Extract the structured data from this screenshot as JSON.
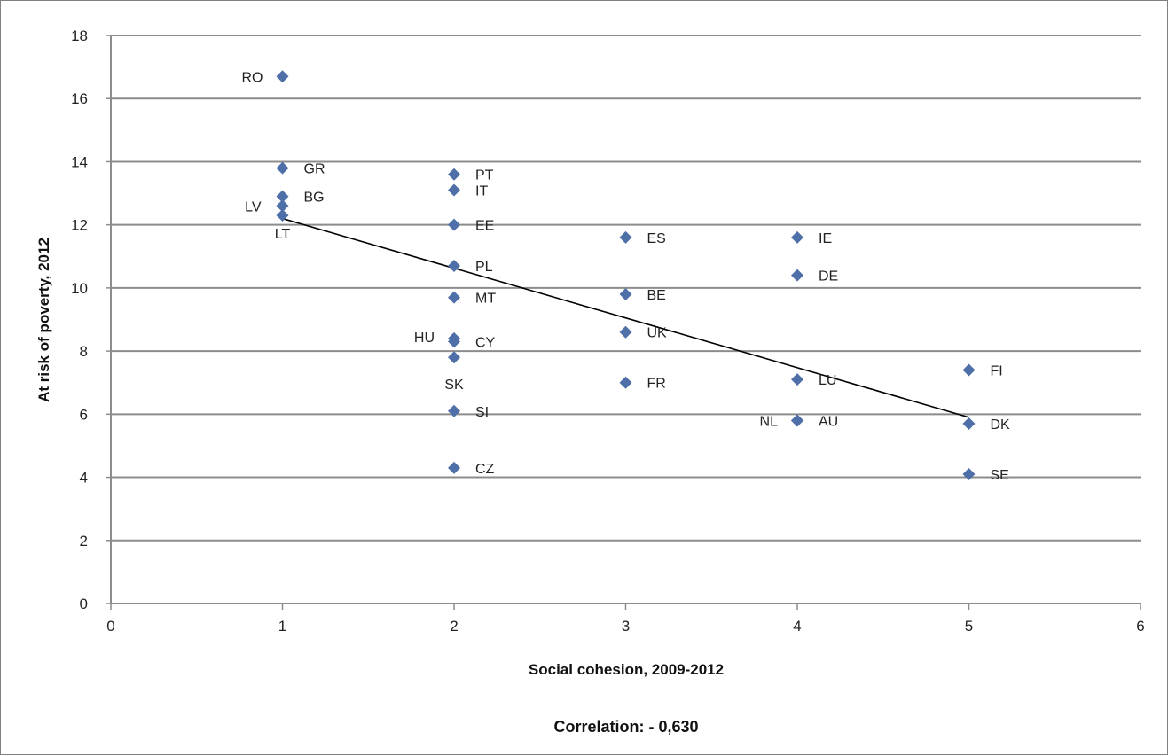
{
  "chart_data": {
    "type": "scatter",
    "xlabel": "Social cohesion, 2009-2012",
    "ylabel": "At risk of poverty, 2012",
    "xlim": [
      0,
      6
    ],
    "ylim": [
      0,
      18
    ],
    "x_ticks": [
      "0",
      "1",
      "2",
      "3",
      "4",
      "5",
      "6"
    ],
    "y_ticks": [
      "0",
      "2",
      "4",
      "6",
      "8",
      "10",
      "12",
      "14",
      "16",
      "18"
    ],
    "grid": "horizontal",
    "marker_color": "#4f6fa8",
    "points": [
      {
        "label": "RO",
        "x": 1,
        "y": 16.7
      },
      {
        "label": "GR",
        "x": 1,
        "y": 13.8
      },
      {
        "label": "BG",
        "x": 1,
        "y": 12.9
      },
      {
        "label": "LV",
        "x": 1,
        "y": 12.6
      },
      {
        "label": "LT",
        "x": 1,
        "y": 12.3
      },
      {
        "label": "PT",
        "x": 2,
        "y": 13.6
      },
      {
        "label": "IT",
        "x": 2,
        "y": 13.1
      },
      {
        "label": "EE",
        "x": 2,
        "y": 12.0
      },
      {
        "label": "PL",
        "x": 2,
        "y": 10.7
      },
      {
        "label": "MT",
        "x": 2,
        "y": 9.7
      },
      {
        "label": "HU",
        "x": 2,
        "y": 8.4
      },
      {
        "label": "CY",
        "x": 2,
        "y": 8.3
      },
      {
        "label": "SK",
        "x": 2,
        "y": 7.8
      },
      {
        "label": "SI",
        "x": 2,
        "y": 6.1
      },
      {
        "label": "CZ",
        "x": 2,
        "y": 4.3
      },
      {
        "label": "ES",
        "x": 3,
        "y": 11.6
      },
      {
        "label": "BE",
        "x": 3,
        "y": 9.8
      },
      {
        "label": "UK",
        "x": 3,
        "y": 8.6
      },
      {
        "label": "FR",
        "x": 3,
        "y": 7.0
      },
      {
        "label": "IE",
        "x": 4,
        "y": 11.6
      },
      {
        "label": "DE",
        "x": 4,
        "y": 10.4
      },
      {
        "label": "LU",
        "x": 4,
        "y": 7.1
      },
      {
        "label": "NL",
        "x": 4,
        "y": 5.8
      },
      {
        "label": "AU",
        "x": 4,
        "y": 5.8
      },
      {
        "label": "FI",
        "x": 5,
        "y": 7.4
      },
      {
        "label": "DK",
        "x": 5,
        "y": 5.7
      },
      {
        "label": "SE",
        "x": 5,
        "y": 4.1
      }
    ],
    "trendline": {
      "x": [
        1,
        5
      ],
      "y": [
        12.2,
        5.9
      ]
    },
    "footnote": "Correlation: - 0,630"
  }
}
